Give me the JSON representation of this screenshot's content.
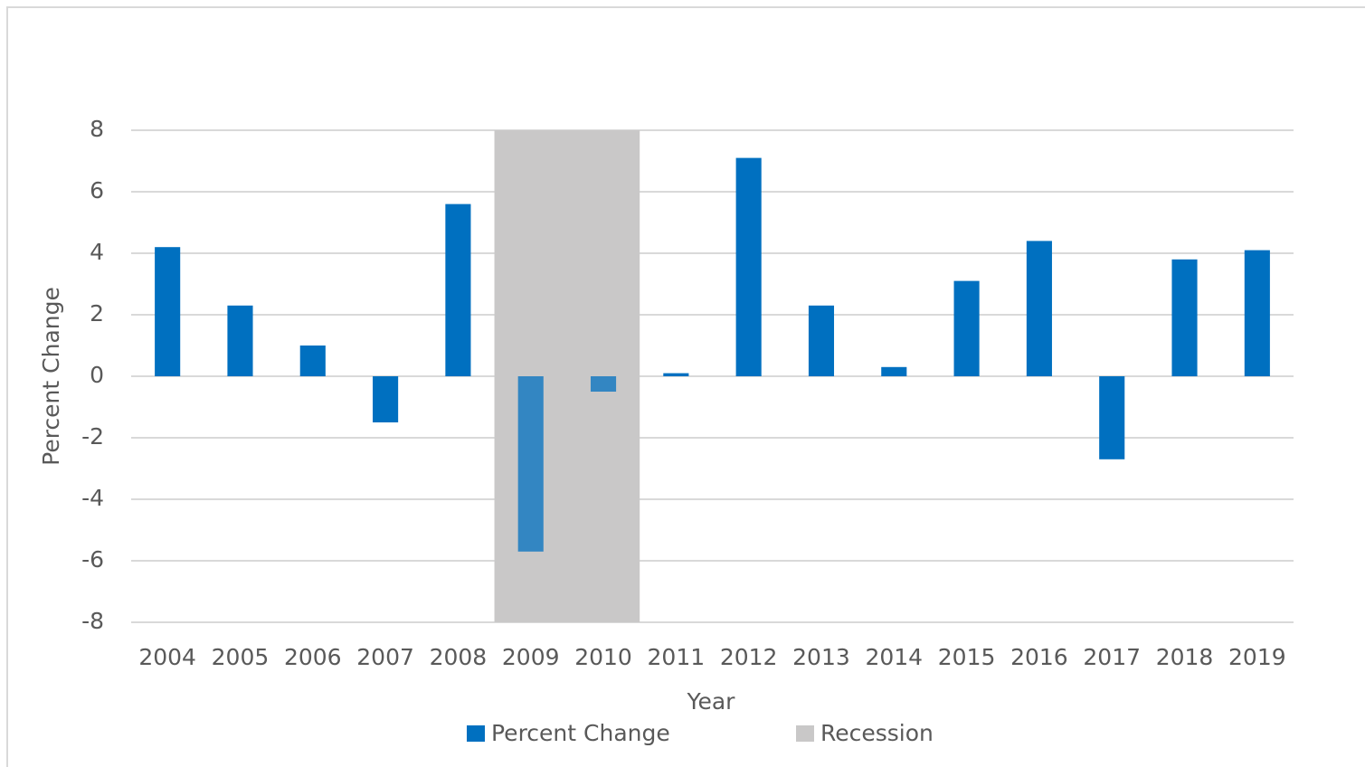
{
  "chart_data": {
    "type": "bar",
    "categories": [
      "2004",
      "2005",
      "2006",
      "2007",
      "2008",
      "2009",
      "2010",
      "2011",
      "2012",
      "2013",
      "2014",
      "2015",
      "2016",
      "2017",
      "2018",
      "2019"
    ],
    "series": [
      {
        "name": "Percent Change",
        "color": "#0070c0",
        "values": [
          4.2,
          2.3,
          1.0,
          -1.5,
          5.6,
          -5.7,
          -0.5,
          0.1,
          7.1,
          2.3,
          0.3,
          3.1,
          4.4,
          -2.7,
          3.8,
          4.1
        ]
      }
    ],
    "recession": {
      "name": "Recession",
      "color": "#c9c8c8",
      "categories": [
        "2009",
        "2010"
      ]
    },
    "xlabel": "Year",
    "ylabel": "Percent Change",
    "ylim": [
      -8,
      8
    ],
    "yticks": [
      -8,
      -6,
      -4,
      -2,
      0,
      2,
      4,
      6,
      8
    ],
    "grid": true
  }
}
